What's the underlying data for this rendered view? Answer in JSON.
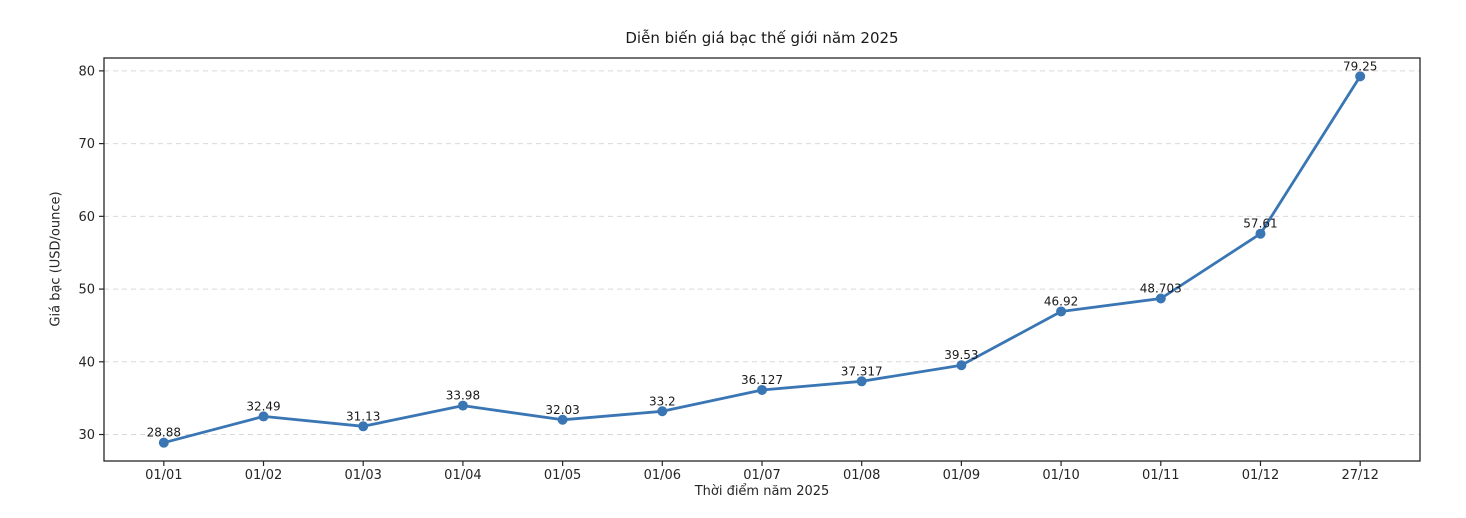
{
  "chart_data": {
    "type": "line",
    "title": "Diễn biến giá bạc thế giới năm 2025",
    "xlabel": "Thời điểm năm 2025",
    "ylabel": "Giá bạc (USD/ounce)",
    "categories": [
      "01/01",
      "01/02",
      "01/03",
      "01/04",
      "01/05",
      "01/06",
      "01/07",
      "01/08",
      "01/09",
      "01/10",
      "01/11",
      "01/12",
      "27/12"
    ],
    "series": [
      {
        "name": "Giá bạc",
        "values": [
          28.88,
          32.49,
          31.13,
          33.98,
          32.03,
          33.2,
          36.127,
          37.317,
          39.53,
          46.92,
          48.703,
          57.61,
          79.25
        ],
        "point_labels": [
          "28.88",
          "32.49",
          "31.13",
          "33.98",
          "32.03",
          "33.2",
          "36.127",
          "37.317",
          "39.53",
          "46.92",
          "48.703",
          "57.61",
          "79.25"
        ]
      }
    ],
    "yticks": [
      30,
      40,
      50,
      60,
      70,
      80
    ],
    "ylim": [
      26.36,
      81.77
    ],
    "grid": "horizontal dashed",
    "legend": "none",
    "colors": {
      "line": "#3a76b4",
      "marker": "#3a76b4",
      "grid": "#d9d9d9",
      "spine": "#262626",
      "text": "#262626"
    }
  }
}
